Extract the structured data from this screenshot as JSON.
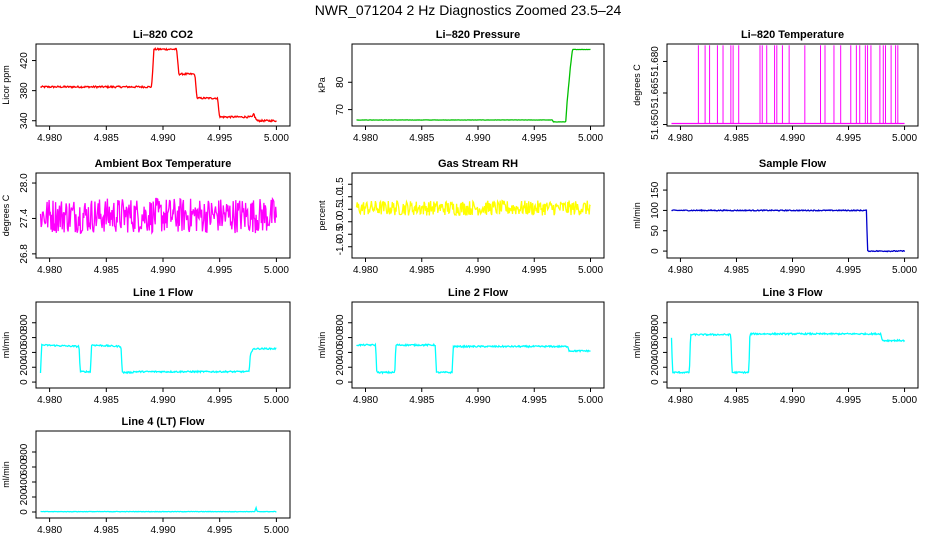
{
  "figure": {
    "title": "NWR_071204 2 Hz Diagnostics Zoomed 23.5–24"
  },
  "chart_data": [
    {
      "type": "line",
      "title": "Li–820 CO2",
      "xlabel": "",
      "ylabel": "Licor ppm",
      "xlim": [
        4.9788,
        5.0012
      ],
      "ylim": [
        333,
        442
      ],
      "color": "#ff0000",
      "xticks": [
        "4.980",
        "4.985",
        "4.990",
        "4.995",
        "5.000"
      ],
      "yticks": [
        340,
        380,
        420
      ],
      "ytick_labels": [
        "340",
        "380",
        "420"
      ],
      "series": [
        {
          "x": [
            4.9792,
            4.989,
            4.9892,
            4.9912,
            4.9914,
            4.9928,
            4.993,
            4.9948,
            4.995,
            4.9979,
            4.998,
            4.9981,
            4.9983,
            5.0
          ],
          "y": [
            385,
            385,
            435,
            435,
            402,
            402,
            370,
            370,
            345,
            345,
            350,
            345,
            340,
            340
          ],
          "noise": 1.2
        }
      ]
    },
    {
      "type": "line",
      "title": "Li–820 Pressure",
      "xlabel": "",
      "ylabel": "kPa",
      "xlim": [
        4.9788,
        5.0012
      ],
      "ylim": [
        64,
        94
      ],
      "color": "#00c000",
      "xticks": [
        "4.980",
        "4.985",
        "4.990",
        "4.995",
        "5.000"
      ],
      "yticks": [
        70,
        80
      ],
      "ytick_labels": [
        "70",
        "80"
      ],
      "series": [
        {
          "x": [
            4.9792,
            4.9966,
            4.9967,
            4.9978,
            4.9979,
            4.9982,
            4.9984,
            5.0
          ],
          "y": [
            66.2,
            66.2,
            65.5,
            65.5,
            72,
            85,
            92,
            92
          ],
          "noise": 0.05
        }
      ]
    },
    {
      "type": "line",
      "title": "Li–820 Temperature",
      "xlabel": "",
      "ylabel": "degrees C",
      "xlim": [
        4.9788,
        5.0012
      ],
      "ylim": [
        51.6493,
        51.6883
      ],
      "color": "#ff00ff",
      "xticks": [
        "4.980",
        "4.985",
        "4.990",
        "4.995",
        "5.000"
      ],
      "yticks": [
        51.65,
        51.665,
        51.68
      ],
      "ytick_labels": [
        "51.650",
        "51.665",
        "51.680"
      ],
      "baseline": 51.6505,
      "spike_value": 51.6877,
      "spikes": [
        4.9816,
        4.9822,
        4.9826,
        4.9833,
        4.9838,
        4.9845,
        4.9847,
        4.9852,
        4.9871,
        4.9873,
        4.9877,
        4.9884,
        4.9886,
        4.9891,
        4.9897,
        4.9911,
        4.9925,
        4.9929,
        4.9937,
        4.9943,
        4.9952,
        4.9957,
        4.996,
        4.9965,
        4.9967,
        4.997,
        4.9978,
        4.9981,
        4.9983,
        4.9988,
        4.9992,
        4.9994
      ]
    },
    {
      "type": "line",
      "title": "Ambient Box Temperature",
      "xlabel": "",
      "ylabel": "degrees C",
      "xlim": [
        4.9788,
        5.0012
      ],
      "ylim": [
        26.73,
        28.17
      ],
      "color": "#ff00ff",
      "xticks": [
        "4.980",
        "4.985",
        "4.990",
        "4.995",
        "5.000"
      ],
      "yticks": [
        26.8,
        27.4,
        28.0
      ],
      "ytick_labels": [
        "26.8",
        "27.4",
        "28.0"
      ],
      "series": [
        {
          "x": [
            4.9792,
            5.0
          ],
          "y": [
            27.45,
            27.45
          ],
          "noise": 0.3
        }
      ]
    },
    {
      "type": "line",
      "title": "Gas Stream RH",
      "xlabel": "",
      "ylabel": "percent",
      "xlim": [
        4.9788,
        5.0012
      ],
      "ylim": [
        -1.45,
        1.95
      ],
      "color": "#ffff00",
      "xticks": [
        "4.980",
        "4.985",
        "4.990",
        "4.995",
        "5.000"
      ],
      "yticks": [
        -1.0,
        -0.5,
        0.0,
        0.5,
        1.0,
        1.5
      ],
      "ytick_labels": [
        "-1.0",
        "-0.5",
        "0.0",
        "0.5",
        "1.0",
        "1.5"
      ],
      "series": [
        {
          "x": [
            4.9792,
            5.0
          ],
          "y": [
            0.55,
            0.55
          ],
          "noise": 0.3
        }
      ]
    },
    {
      "type": "line",
      "title": "Sample Flow",
      "xlabel": "",
      "ylabel": "ml/min",
      "xlim": [
        4.9788,
        5.0012
      ],
      "ylim": [
        -17,
        192
      ],
      "color": "#0000cc",
      "xticks": [
        "4.980",
        "4.985",
        "4.990",
        "4.995",
        "5.000"
      ],
      "yticks": [
        0,
        50,
        100,
        150
      ],
      "ytick_labels": [
        "0",
        "50",
        "100",
        "150"
      ],
      "series": [
        {
          "x": [
            4.9792,
            4.9966,
            4.9967,
            5.0
          ],
          "y": [
            100,
            100,
            0,
            0
          ],
          "noise": 1.2
        }
      ]
    },
    {
      "type": "line",
      "title": "Line 1 Flow",
      "xlabel": "",
      "ylabel": "ml/min",
      "xlim": [
        4.9788,
        5.0012
      ],
      "ylim": [
        -80,
        1080
      ],
      "color": "#00ffff",
      "xticks": [
        "4.980",
        "4.985",
        "4.990",
        "4.995",
        "5.000"
      ],
      "yticks": [
        0,
        200,
        400,
        600,
        800
      ],
      "ytick_labels": [
        "0",
        "200",
        "400",
        "600",
        "800"
      ],
      "series": [
        {
          "x": [
            4.9792,
            4.9793,
            4.9826,
            4.9827,
            4.9836,
            4.9837,
            4.9863,
            4.9864,
            4.9873,
            4.9874,
            4.9976,
            4.9977,
            4.998,
            5.0
          ],
          "y": [
            130,
            500,
            480,
            140,
            140,
            500,
            480,
            130,
            130,
            140,
            140,
            380,
            450,
            450
          ],
          "noise": 10
        }
      ]
    },
    {
      "type": "line",
      "title": "Line 2 Flow",
      "xlabel": "",
      "ylabel": "ml/min",
      "xlim": [
        4.9788,
        5.0012
      ],
      "ylim": [
        -80,
        1080
      ],
      "color": "#00ffff",
      "xticks": [
        "4.980",
        "4.985",
        "4.990",
        "4.995",
        "5.000"
      ],
      "yticks": [
        0,
        200,
        400,
        600,
        800
      ],
      "ytick_labels": [
        "0",
        "200",
        "400",
        "600",
        "800"
      ],
      "series": [
        {
          "x": [
            4.9792,
            4.9809,
            4.981,
            4.9826,
            4.9827,
            4.9862,
            4.9863,
            4.9877,
            4.9878,
            4.998,
            4.9981,
            5.0
          ],
          "y": [
            500,
            500,
            130,
            130,
            500,
            500,
            130,
            130,
            480,
            480,
            420,
            420
          ],
          "noise": 10
        }
      ]
    },
    {
      "type": "line",
      "title": "Line 3 Flow",
      "xlabel": "",
      "ylabel": "ml/min",
      "xlim": [
        4.9788,
        5.0012
      ],
      "ylim": [
        -80,
        1080
      ],
      "color": "#00ffff",
      "xticks": [
        "4.980",
        "4.985",
        "4.990",
        "4.995",
        "5.000"
      ],
      "yticks": [
        0,
        200,
        400,
        600,
        800
      ],
      "ytick_labels": [
        "0",
        "200",
        "400",
        "600",
        "800"
      ],
      "series": [
        {
          "x": [
            4.9792,
            4.9793,
            4.9808,
            4.9809,
            4.9845,
            4.9846,
            4.9861,
            4.9862,
            4.9979,
            4.998,
            5.0
          ],
          "y": [
            600,
            130,
            130,
            640,
            640,
            130,
            130,
            650,
            650,
            560,
            560
          ],
          "noise": 10
        }
      ]
    },
    {
      "type": "line",
      "title": "Line 4 (LT) Flow",
      "xlabel": "",
      "ylabel": "ml/min",
      "xlim": [
        4.9788,
        5.0012
      ],
      "ylim": [
        -80,
        1080
      ],
      "color": "#00ffff",
      "xticks": [
        "4.980",
        "4.985",
        "4.990",
        "4.995",
        "5.000"
      ],
      "yticks": [
        0,
        200,
        400,
        600,
        800
      ],
      "ytick_labels": [
        "0",
        "200",
        "400",
        "600",
        "800"
      ],
      "series": [
        {
          "x": [
            4.9792,
            4.9981,
            4.9982,
            4.9983,
            5.0
          ],
          "y": [
            5,
            5,
            60,
            5,
            5
          ],
          "noise": 3
        }
      ]
    }
  ]
}
